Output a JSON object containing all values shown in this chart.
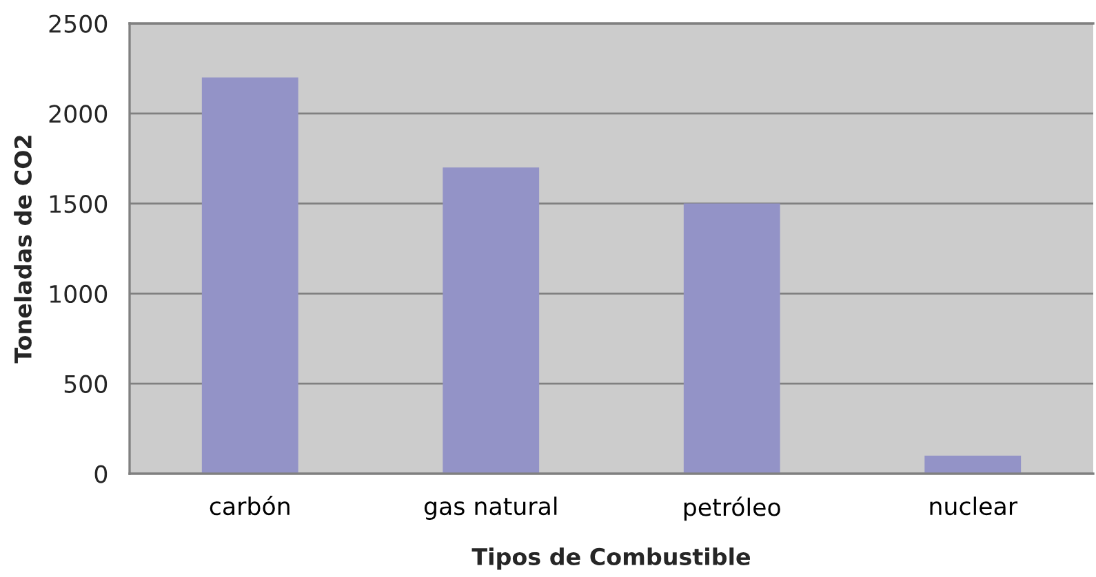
{
  "chart_data": {
    "type": "bar",
    "categories": [
      "carbón",
      "gas natural",
      "petróleo",
      "nuclear"
    ],
    "values": [
      2200,
      1700,
      1500,
      100
    ],
    "color": "#9393c7",
    "xlabel": "Tipos de Combustible",
    "ylabel": "Toneladas de CO2",
    "ylim": [
      0,
      2500
    ],
    "yticks": [
      0,
      500,
      1000,
      1500,
      2000,
      2500
    ],
    "grid": "y"
  }
}
